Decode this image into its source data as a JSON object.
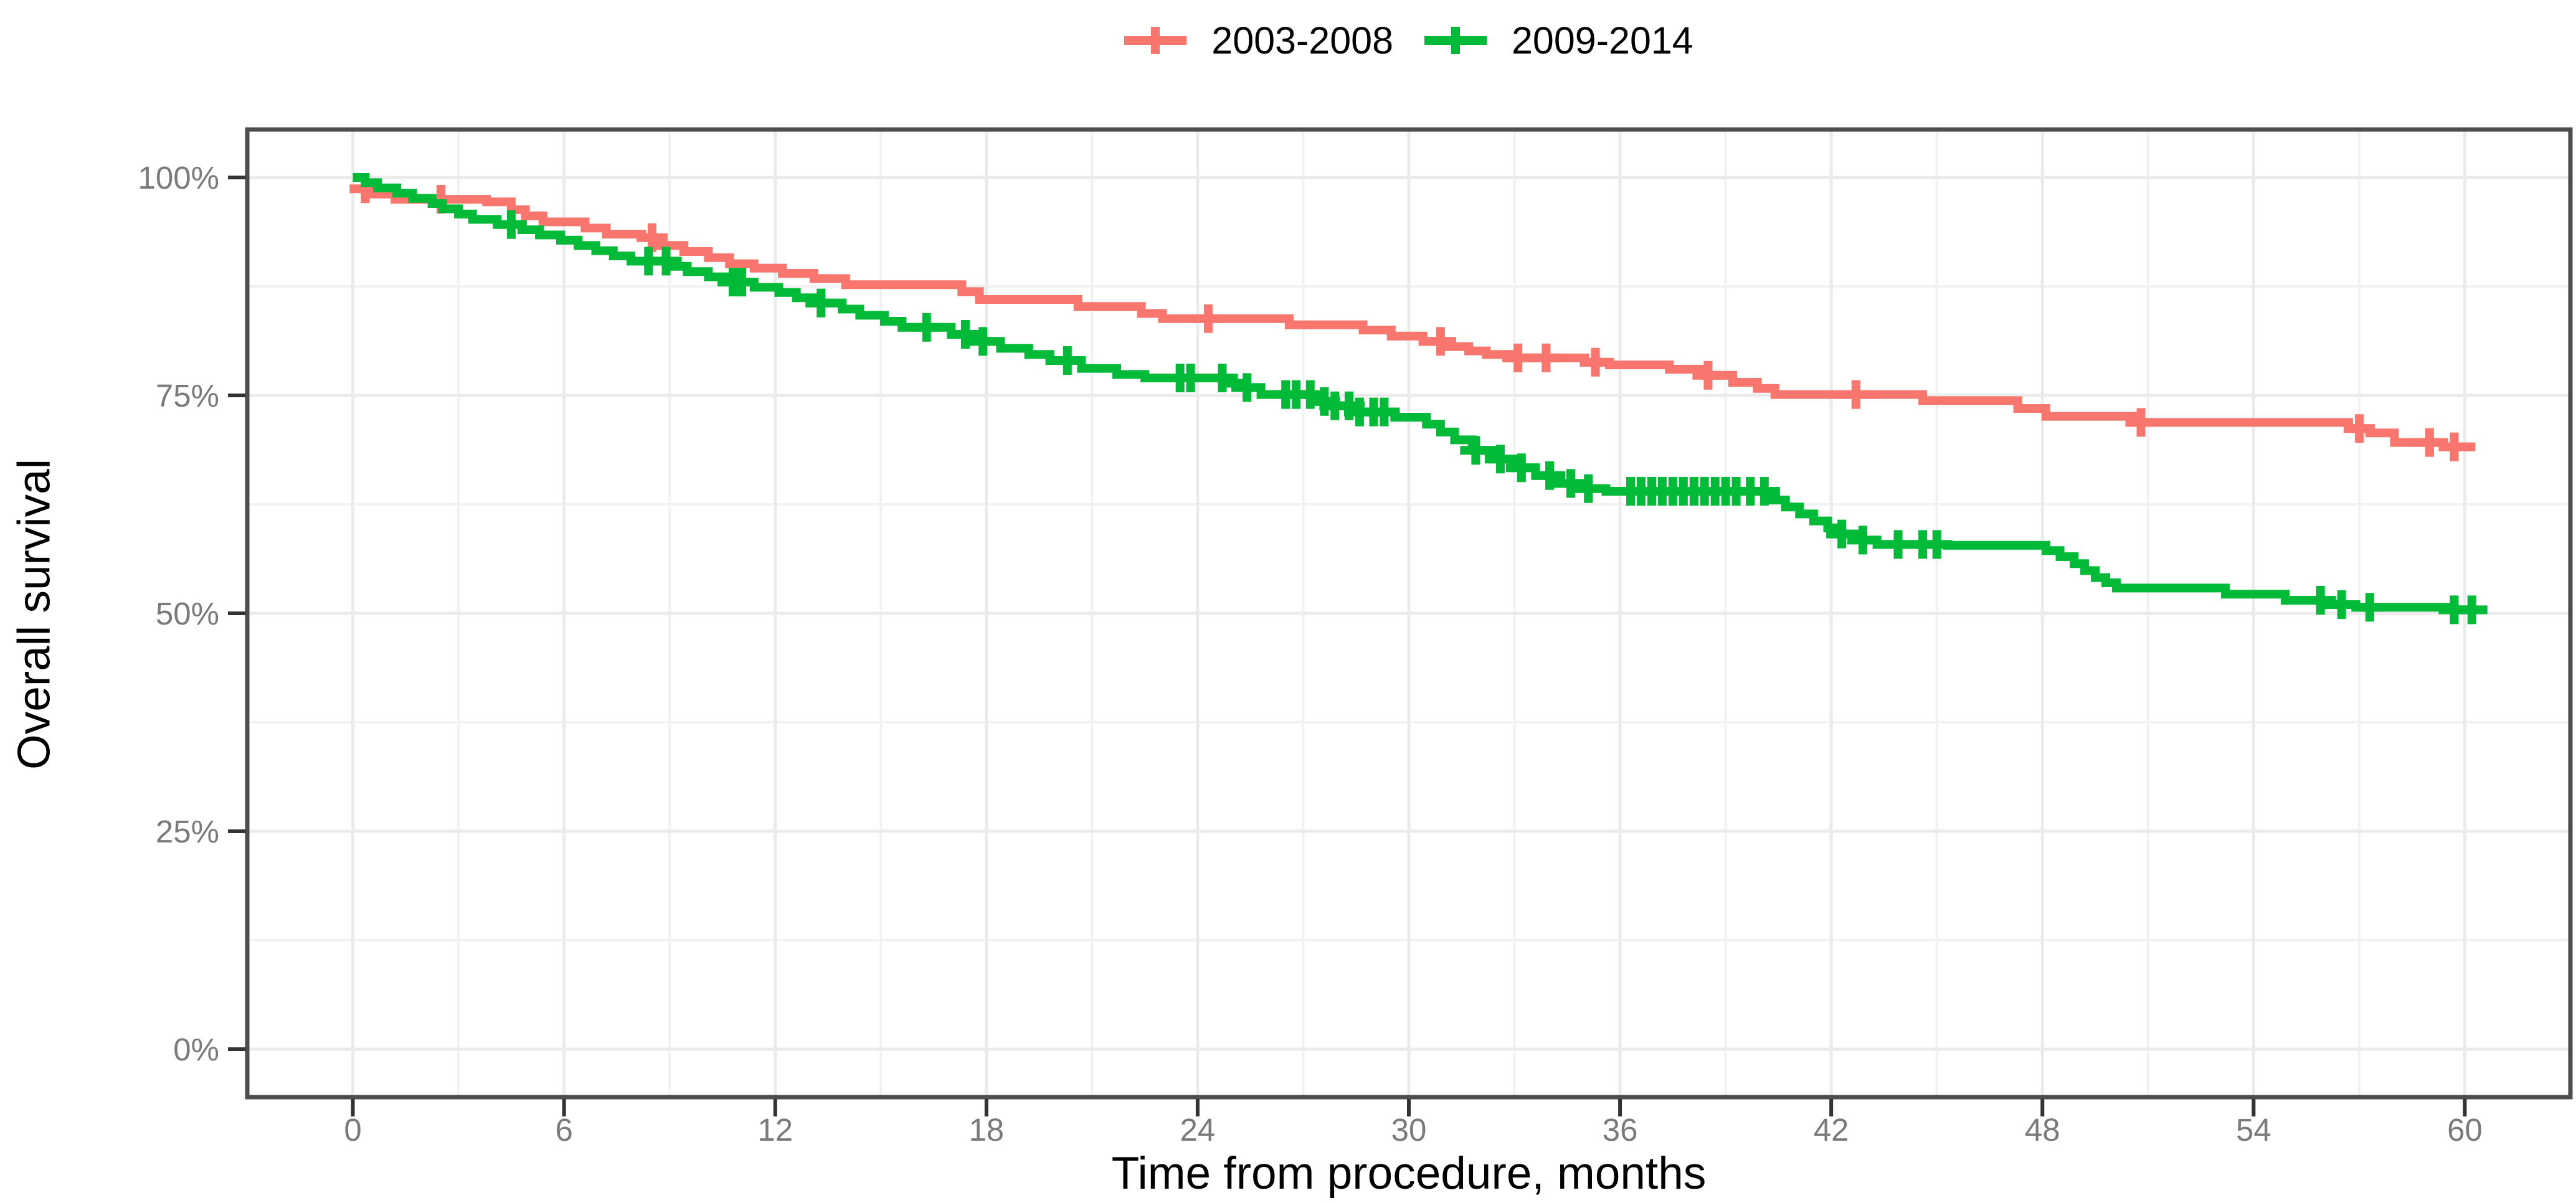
{
  "chart_data": {
    "type": "line",
    "subtype": "kaplan-meier-step",
    "title": "",
    "xlabel": "Time from procedure, months",
    "ylabel": "Overall survival",
    "xlim": [
      -3,
      63
    ],
    "ylim": [
      -5.5,
      105.5
    ],
    "grid": "on",
    "legend_position": "top-center",
    "x_major_ticks": [
      0,
      6,
      12,
      18,
      24,
      30,
      36,
      42,
      48,
      54,
      60
    ],
    "x_tick_labels": [
      "0",
      "6",
      "12",
      "18",
      "24",
      "30",
      "36",
      "42",
      "48",
      "54",
      "60"
    ],
    "x_minor_gridlines": [
      3,
      9,
      15,
      21,
      27,
      33,
      39,
      45,
      51,
      57
    ],
    "y_major_ticks": [
      0,
      25,
      50,
      75,
      100
    ],
    "y_tick_labels": [
      "0%",
      "25%",
      "50%",
      "75%",
      "100%"
    ],
    "y_minor_gridlines": [
      12.5,
      37.5,
      62.5,
      87.5
    ],
    "legend": [
      {
        "label": "2003-2008",
        "color": "#F8766D"
      },
      {
        "label": "2009-2014",
        "color": "#00BA38"
      }
    ],
    "series": [
      {
        "name": "2003-2008",
        "color": "#F8766D",
        "end_t": 60.3,
        "steps": [
          [
            0,
            100
          ],
          [
            0.35,
            98.7
          ],
          [
            0.6,
            98.1
          ],
          [
            1.2,
            97.5
          ],
          [
            3.8,
            97.2
          ],
          [
            4.5,
            96.3
          ],
          [
            4.9,
            95.6
          ],
          [
            5.4,
            94.9
          ],
          [
            6.6,
            94.2
          ],
          [
            7.2,
            93.5
          ],
          [
            8.2,
            93.1
          ],
          [
            8.6,
            92.2
          ],
          [
            9.4,
            91.5
          ],
          [
            10.1,
            90.8
          ],
          [
            10.7,
            90.1
          ],
          [
            11.4,
            89.6
          ],
          [
            12.2,
            89.0
          ],
          [
            13.1,
            88.4
          ],
          [
            14.0,
            87.7
          ],
          [
            17.3,
            86.9
          ],
          [
            17.8,
            86.0
          ],
          [
            20.6,
            85.2
          ],
          [
            22.4,
            84.4
          ],
          [
            23.0,
            83.8
          ],
          [
            26.6,
            83.1
          ],
          [
            28.7,
            82.5
          ],
          [
            29.5,
            81.8
          ],
          [
            30.4,
            81.2
          ],
          [
            31.0,
            80.6
          ],
          [
            31.7,
            80.1
          ],
          [
            32.2,
            79.7
          ],
          [
            32.9,
            79.3
          ],
          [
            35.0,
            78.8
          ],
          [
            35.7,
            78.5
          ],
          [
            37.4,
            78.0
          ],
          [
            38.4,
            77.3
          ],
          [
            39.2,
            76.5
          ],
          [
            39.9,
            75.8
          ],
          [
            40.4,
            75.1
          ],
          [
            44.6,
            74.4
          ],
          [
            47.3,
            73.5
          ],
          [
            48.1,
            72.6
          ],
          [
            50.6,
            71.9
          ],
          [
            56.7,
            71.2
          ],
          [
            57.3,
            70.7
          ],
          [
            58.0,
            69.6
          ],
          [
            59.4,
            69.1
          ]
        ],
        "censor_times": [
          0.35,
          2.5,
          8.5,
          24.3,
          30.9,
          33.1,
          33.9,
          35.3,
          38.5,
          42.7,
          50.8,
          57.0,
          59.0,
          59.7
        ]
      },
      {
        "name": "2009-2014",
        "color": "#00BA38",
        "end_t": 60.3,
        "steps": [
          [
            0,
            100
          ],
          [
            0.35,
            99.4
          ],
          [
            0.7,
            98.8
          ],
          [
            1.25,
            98.2
          ],
          [
            1.7,
            97.6
          ],
          [
            2.25,
            97.0
          ],
          [
            2.55,
            96.4
          ],
          [
            3.0,
            95.8
          ],
          [
            3.4,
            95.2
          ],
          [
            4.1,
            94.6
          ],
          [
            4.8,
            94.0
          ],
          [
            5.3,
            93.4
          ],
          [
            5.9,
            92.8
          ],
          [
            6.4,
            92.2
          ],
          [
            6.9,
            91.6
          ],
          [
            7.4,
            91.0
          ],
          [
            7.9,
            90.4
          ],
          [
            9.0,
            89.8
          ],
          [
            9.5,
            89.2
          ],
          [
            10.1,
            88.6
          ],
          [
            10.6,
            88.0
          ],
          [
            11.4,
            87.4
          ],
          [
            12.1,
            86.8
          ],
          [
            12.6,
            86.2
          ],
          [
            13.1,
            85.6
          ],
          [
            13.9,
            84.9
          ],
          [
            14.4,
            84.2
          ],
          [
            15.1,
            83.5
          ],
          [
            15.6,
            82.8
          ],
          [
            17.0,
            82.0
          ],
          [
            17.6,
            81.2
          ],
          [
            18.4,
            80.4
          ],
          [
            19.2,
            79.7
          ],
          [
            19.8,
            79.0
          ],
          [
            20.7,
            78.1
          ],
          [
            21.7,
            77.4
          ],
          [
            22.5,
            77.0
          ],
          [
            24.8,
            76.4
          ],
          [
            25.3,
            75.9
          ],
          [
            25.8,
            75.1
          ],
          [
            27.3,
            74.3
          ],
          [
            27.8,
            73.8
          ],
          [
            28.6,
            73.1
          ],
          [
            29.6,
            72.5
          ],
          [
            30.5,
            71.7
          ],
          [
            30.9,
            70.8
          ],
          [
            31.3,
            69.9
          ],
          [
            31.8,
            68.7
          ],
          [
            32.4,
            67.7
          ],
          [
            33.0,
            66.7
          ],
          [
            33.6,
            65.8
          ],
          [
            34.2,
            64.9
          ],
          [
            34.9,
            64.3
          ],
          [
            35.6,
            64.0
          ],
          [
            40.3,
            63.0
          ],
          [
            40.7,
            62.2
          ],
          [
            41.1,
            61.4
          ],
          [
            41.5,
            60.6
          ],
          [
            41.9,
            59.8
          ],
          [
            42.3,
            59.1
          ],
          [
            42.9,
            58.4
          ],
          [
            43.3,
            57.9
          ],
          [
            45.3,
            57.8
          ],
          [
            48.1,
            57.2
          ],
          [
            48.5,
            56.5
          ],
          [
            48.9,
            55.7
          ],
          [
            49.2,
            54.9
          ],
          [
            49.5,
            54.1
          ],
          [
            49.8,
            53.5
          ],
          [
            50.1,
            52.9
          ],
          [
            53.2,
            52.2
          ],
          [
            54.9,
            51.5
          ],
          [
            56.1,
            51.0
          ],
          [
            56.9,
            50.7
          ],
          [
            59.7,
            50.4
          ]
        ],
        "censor_times": [
          4.5,
          8.4,
          8.9,
          10.8,
          11.05,
          13.3,
          16.3,
          17.4,
          17.9,
          20.3,
          23.5,
          23.8,
          24.7,
          25.4,
          26.5,
          26.8,
          27.2,
          27.6,
          27.9,
          28.3,
          28.6,
          29.0,
          29.3,
          31.9,
          32.6,
          33.2,
          34.0,
          34.6,
          35.1,
          36.3,
          36.6,
          36.9,
          37.2,
          37.5,
          37.8,
          38.1,
          38.4,
          38.7,
          39.0,
          39.3,
          39.7,
          40.1,
          42.3,
          42.9,
          43.9,
          44.6,
          45.0,
          55.9,
          56.5,
          57.3,
          59.7,
          60.2
        ]
      }
    ],
    "style": {
      "panel_border_color": "#4D4D4D",
      "major_grid_color": "#EBEBEB",
      "minor_grid_color": "#F2F2F2",
      "tick_mark_color": "#333333",
      "tick_label_color": "#7A7A7A",
      "axis_title_color": "#000000",
      "background_color": "#FFFFFF",
      "line_width": 14,
      "censor_half_height": 23
    }
  }
}
